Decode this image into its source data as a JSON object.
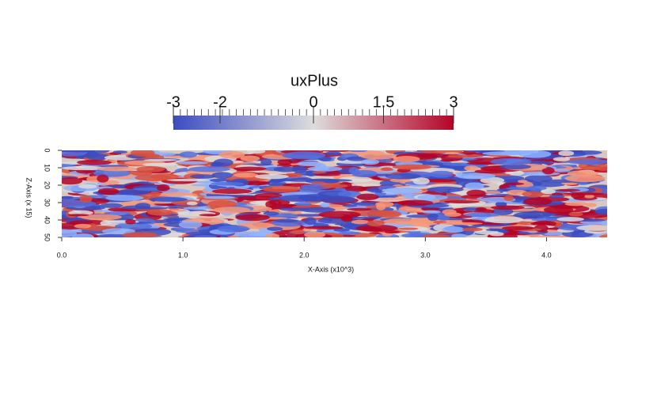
{
  "chart_data": {
    "type": "contour",
    "colorbar": {
      "title": "uxPlus",
      "lim": [
        -3,
        3
      ],
      "ticks": [
        -3,
        -2,
        0,
        1.5,
        3
      ],
      "colors": [
        "#3b4cc0",
        "#dddddd",
        "#b40426"
      ]
    },
    "xlabel": "X-Axis (x10^3)",
    "ylabel": "Z-Axis (x 15)",
    "xlim": [
      0,
      4.5
    ],
    "xticks": [
      {
        "value": 0,
        "label": "0.0"
      },
      {
        "value": 1,
        "label": "1.0"
      },
      {
        "value": 2,
        "label": "2.0"
      },
      {
        "value": 3,
        "label": "3.0"
      },
      {
        "value": 4,
        "label": "4.0"
      }
    ],
    "ylim": [
      0,
      50
    ],
    "yticks": [
      0,
      10,
      20,
      30,
      40,
      50
    ]
  }
}
